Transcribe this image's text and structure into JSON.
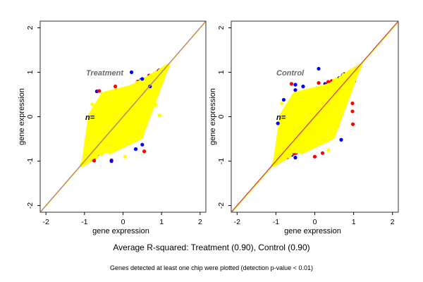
{
  "figure": {
    "main_caption": "Average R-squared: Treatment (0.90), Control (0.90)",
    "sub_caption": "Genes detected at least one chip were plotted (detection p-value < 0.01)"
  },
  "chart_data": [
    {
      "type": "scatter",
      "panel": "left",
      "annotation": "Treatment",
      "n_label": "n=",
      "xlabel": "gene expression",
      "ylabel": "gene expression",
      "xlim": [
        -2.15,
        2.15
      ],
      "ylim": [
        -2.15,
        2.15
      ],
      "xticks": [
        -2,
        -1,
        0,
        1,
        2
      ],
      "yticks": [
        -2,
        -1,
        0,
        1,
        2
      ],
      "grid": false,
      "reference_lines": [
        {
          "name": "identity-line-blue",
          "slope": 1,
          "intercept": 0,
          "color": "#3b4fd8"
        },
        {
          "name": "fit-line-orange",
          "slope": 1,
          "intercept": -0.01,
          "color": "#f0a020"
        }
      ],
      "point_cloud": {
        "shape": "diamond",
        "center": [
          0,
          0
        ],
        "extent_x": [
          -1.1,
          1.25
        ],
        "extent_y": [
          -1.1,
          1.2
        ],
        "colors": [
          "#0000ff",
          "#ff0000",
          "#ffff00"
        ]
      },
      "outliers": [
        {
          "x": 0.22,
          "y": 1.0,
          "color": "#0000ff"
        },
        {
          "x": -0.68,
          "y": 0.57,
          "color": "#0000ff"
        },
        {
          "x": -0.62,
          "y": 0.58,
          "color": "#ff0000"
        },
        {
          "x": -0.2,
          "y": 0.68,
          "color": "#ff0000"
        },
        {
          "x": -0.8,
          "y": 0.28,
          "color": "#ffff00"
        },
        {
          "x": 0.5,
          "y": 0.85,
          "color": "#0000ff"
        },
        {
          "x": 0.7,
          "y": 0.68,
          "color": "#0000ff"
        },
        {
          "x": 0.85,
          "y": 0.27,
          "color": "#ffff00"
        },
        {
          "x": 0.95,
          "y": 0.03,
          "color": "#ffff00"
        },
        {
          "x": 0.55,
          "y": -0.78,
          "color": "#ff0000"
        },
        {
          "x": -0.3,
          "y": -0.98,
          "color": "#ff0000"
        },
        {
          "x": -0.3,
          "y": -1.0,
          "color": "#0000ff"
        },
        {
          "x": 0.05,
          "y": -0.9,
          "color": "#ffff00"
        },
        {
          "x": 0.33,
          "y": -0.73,
          "color": "#0000ff"
        },
        {
          "x": -0.75,
          "y": -0.99,
          "color": "#ff0000"
        },
        {
          "x": 0.5,
          "y": -0.63,
          "color": "#0000ff"
        }
      ]
    },
    {
      "type": "scatter",
      "panel": "right",
      "annotation": "Control",
      "n_label": "n=",
      "xlabel": "gene expression",
      "ylabel": "gene expression",
      "xlim": [
        -2.15,
        2.15
      ],
      "ylim": [
        -2.15,
        2.15
      ],
      "xticks": [
        -2,
        -1,
        0,
        1,
        2
      ],
      "yticks": [
        -2,
        -1,
        0,
        1,
        2
      ],
      "grid": false,
      "reference_lines": [
        {
          "name": "identity-line-red",
          "slope": 1,
          "intercept": 0,
          "color": "#c0104a"
        },
        {
          "name": "fit-line-yellow",
          "slope": 1,
          "intercept": -0.02,
          "color": "#f4d000"
        }
      ],
      "point_cloud": {
        "shape": "diamond",
        "center": [
          0,
          0
        ],
        "extent_x": [
          -1.1,
          1.25
        ],
        "extent_y": [
          -1.1,
          1.22
        ],
        "colors": [
          "#0000ff",
          "#ff0000",
          "#ffff00"
        ]
      },
      "outliers": [
        {
          "x": 0.1,
          "y": 1.08,
          "color": "#0000ff"
        },
        {
          "x": -0.6,
          "y": 0.74,
          "color": "#ff0000"
        },
        {
          "x": -0.5,
          "y": 0.72,
          "color": "#0000ff"
        },
        {
          "x": -0.3,
          "y": 0.68,
          "color": "#0000ff"
        },
        {
          "x": -0.5,
          "y": 0.6,
          "color": "#0000ff"
        },
        {
          "x": 0.1,
          "y": 0.76,
          "color": "#ff0000"
        },
        {
          "x": -0.8,
          "y": 0.38,
          "color": "#0000ff"
        },
        {
          "x": -0.85,
          "y": 0.3,
          "color": "#ffff00"
        },
        {
          "x": -0.95,
          "y": -0.15,
          "color": "#0000ff"
        },
        {
          "x": 0.97,
          "y": 0.3,
          "color": "#ff0000"
        },
        {
          "x": 0.97,
          "y": 0.12,
          "color": "#ff0000"
        },
        {
          "x": 0.98,
          "y": -0.17,
          "color": "#ff0000"
        },
        {
          "x": 0.68,
          "y": -0.52,
          "color": "#0000ff"
        },
        {
          "x": 0.0,
          "y": -0.9,
          "color": "#ff0000"
        },
        {
          "x": -0.5,
          "y": -0.92,
          "color": "#0000ff"
        },
        {
          "x": 0.2,
          "y": -0.82,
          "color": "#ff0000"
        },
        {
          "x": 0.35,
          "y": -0.75,
          "color": "#ffff00"
        },
        {
          "x": 0.6,
          "y": -0.22,
          "color": "#ffff00"
        }
      ]
    }
  ]
}
